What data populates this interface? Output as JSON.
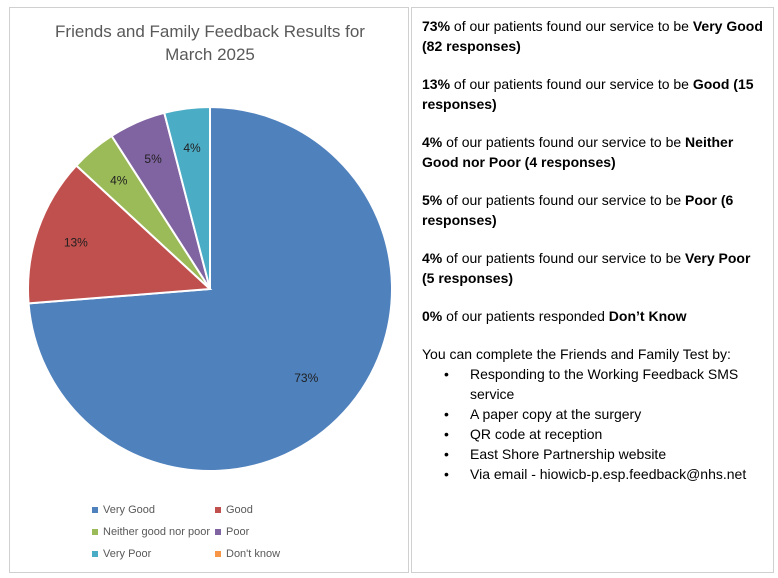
{
  "chart_data": {
    "type": "pie",
    "title_line1": "Friends and Family Feedback Results for",
    "title_line2": "March 2025",
    "slices": [
      {
        "name": "Very Good",
        "value": 73,
        "label": "73%",
        "color": "#4f81bd"
      },
      {
        "name": "Good",
        "value": 13,
        "label": "13%",
        "color": "#c0504d"
      },
      {
        "name": "Neither good nor poor",
        "value": 4,
        "label": "4%",
        "color": "#9bbb59"
      },
      {
        "name": "Poor",
        "value": 5,
        "label": "5%",
        "color": "#8064a2"
      },
      {
        "name": "Very Poor",
        "value": 4,
        "label": "4%",
        "color": "#4bacc6"
      },
      {
        "name": "Don't know",
        "value": 0,
        "label": "",
        "color": "#f79646"
      }
    ],
    "legend_position": "bottom"
  },
  "summary": [
    {
      "pct": "73%",
      "pre": " of our patients found our service to be ",
      "rating": "Very Good",
      "post": " (82 responses)"
    },
    {
      "pct": "13%",
      "pre": " of our patients found our service to be ",
      "rating": "Good",
      "post": " (15 responses)"
    },
    {
      "pct": "4%",
      "pre": " of our patients found our service to be ",
      "rating": "Neither Good nor Poor",
      "post": " (4 responses)"
    },
    {
      "pct": "5%",
      "pre": " of our patients found our service to be ",
      "rating": "Poor",
      "post": " (6 responses)"
    },
    {
      "pct": "4%",
      "pre": " of our patients found our service to be ",
      "rating": "Very Poor",
      "post": " (5 responses)"
    },
    {
      "pct": "0%",
      "pre": " of our patients responded ",
      "rating": "Don’t Know",
      "post": ""
    }
  ],
  "how": {
    "title": "You can complete the Friends and Family Test by:",
    "items": [
      "Responding to the Working Feedback SMS service",
      "A paper copy at the surgery",
      "QR code at reception",
      "East Shore Partnership website",
      "Via email - hiowicb-p.esp.feedback@nhs.net"
    ]
  }
}
